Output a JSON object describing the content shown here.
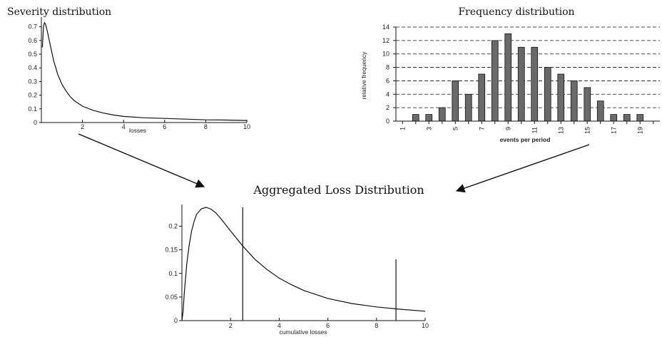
{
  "diagram": {
    "center_title": "Aggregated Loss Distribution"
  },
  "chart_data": [
    {
      "type": "line",
      "title": "Severity distribution",
      "xlabel": "losses",
      "ylabel": "",
      "xlim": [
        0,
        10
      ],
      "ylim": [
        0,
        0.75
      ],
      "x_ticks": [
        2,
        4,
        6,
        8,
        10
      ],
      "y_ticks": [
        0,
        0.1,
        0.2,
        0.3,
        0.4,
        0.5,
        0.6,
        0.7
      ],
      "x_tick_labels": [
        "2",
        "4",
        "6",
        "8",
        "10"
      ],
      "y_tick_labels": [
        "0",
        "0.1",
        "0.2",
        "0.3",
        "0.4",
        "0.5",
        "0.6",
        "0.7"
      ],
      "grid": false,
      "series": [
        {
          "x": [
            0.05,
            0.1,
            0.15,
            0.2,
            0.3,
            0.4,
            0.5,
            0.6,
            0.7,
            0.8,
            1.0,
            1.2,
            1.4,
            1.6,
            1.8,
            2.0,
            2.5,
            3.0,
            3.5,
            4.0,
            5.0,
            6.0,
            7.0,
            8.0,
            9.0,
            10.0
          ],
          "y": [
            0.55,
            0.7,
            0.73,
            0.72,
            0.66,
            0.59,
            0.52,
            0.45,
            0.4,
            0.35,
            0.28,
            0.23,
            0.19,
            0.16,
            0.14,
            0.12,
            0.09,
            0.07,
            0.055,
            0.045,
            0.035,
            0.03,
            0.025,
            0.02,
            0.018,
            0.015
          ]
        }
      ]
    },
    {
      "type": "bar",
      "title": "Frequency distribution",
      "xlabel": "events per period",
      "ylabel": "relative frequency",
      "categories": [
        "1",
        "2",
        "3",
        "4",
        "5",
        "6",
        "7",
        "8",
        "9",
        "10",
        "11",
        "12",
        "13",
        "14",
        "15",
        "16",
        "17",
        "18",
        "19",
        "20"
      ],
      "values": [
        0,
        1,
        1,
        2,
        6,
        4,
        7,
        12,
        13,
        11,
        11,
        8,
        7,
        6,
        5,
        3,
        1,
        1,
        1,
        0
      ],
      "x_tick_labels": [
        "1",
        "3",
        "5",
        "7",
        "9",
        "11",
        "13",
        "15",
        "17",
        "19"
      ],
      "y_ticks": [
        0,
        2,
        4,
        6,
        8,
        10,
        12,
        14
      ],
      "y_tick_labels": [
        "0",
        "2",
        "4",
        "6",
        "8",
        "10",
        "12",
        "14"
      ],
      "ylim": [
        0,
        14
      ],
      "grid": true
    },
    {
      "type": "line",
      "title": "Aggregated Loss Distribution",
      "xlabel": "cumulative losses",
      "ylabel": "",
      "xlim": [
        0,
        10
      ],
      "ylim": [
        0,
        0.24
      ],
      "x_ticks": [
        2,
        4,
        6,
        8,
        10
      ],
      "y_ticks": [
        0,
        0.05,
        0.1,
        0.15,
        0.2
      ],
      "x_tick_labels": [
        "2",
        "4",
        "6",
        "8",
        "10"
      ],
      "y_tick_labels": [
        "0",
        "0.05",
        "0.1",
        "0.15",
        "0.2"
      ],
      "grid": false,
      "vertical_markers": [
        {
          "x": 2.5,
          "from": 0,
          "to": 0.24
        },
        {
          "x": 8.8,
          "from": 0,
          "to": 0.13
        }
      ],
      "series": [
        {
          "x": [
            0.0,
            0.05,
            0.1,
            0.2,
            0.3,
            0.4,
            0.5,
            0.6,
            0.8,
            1.0,
            1.2,
            1.4,
            1.6,
            1.8,
            2.0,
            2.5,
            3.0,
            3.5,
            4.0,
            4.5,
            5.0,
            6.0,
            7.0,
            8.0,
            9.0,
            10.0
          ],
          "y": [
            0.0,
            0.02,
            0.06,
            0.12,
            0.16,
            0.19,
            0.21,
            0.225,
            0.237,
            0.24,
            0.236,
            0.228,
            0.216,
            0.203,
            0.19,
            0.158,
            0.13,
            0.108,
            0.09,
            0.076,
            0.064,
            0.047,
            0.036,
            0.029,
            0.024,
            0.02
          ]
        }
      ]
    }
  ]
}
